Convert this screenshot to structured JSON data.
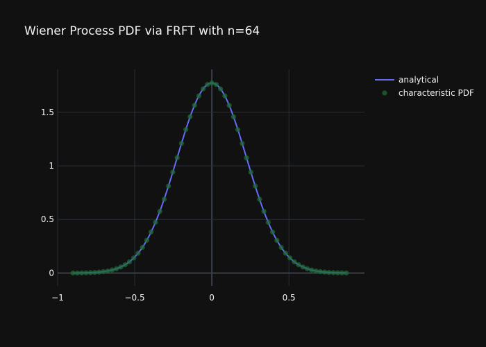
{
  "chart_data": {
    "type": "line",
    "title": "Wiener Process PDF via FRFT with n=64",
    "xlabel": "",
    "ylabel": "",
    "xlim": [
      -1.0,
      0.99
    ],
    "ylim": [
      -0.12,
      1.9
    ],
    "x_ticks": [
      -1,
      -0.5,
      0,
      0.5
    ],
    "x_tick_labels": [
      "−1",
      "−0.5",
      "0",
      "0.5"
    ],
    "y_ticks": [
      0,
      0.5,
      1,
      1.5
    ],
    "y_tick_labels": [
      "0",
      "0.5",
      "1",
      "1.5"
    ],
    "grid": true,
    "legend_position": "top-right",
    "distribution": {
      "mean": 0,
      "sigma": 0.225,
      "x_min": -0.9,
      "x_max": 0.872,
      "n_points": 64
    },
    "series": [
      {
        "name": "analytical",
        "kind": "line",
        "color": "#636efa"
      },
      {
        "name": "characteristic PDF",
        "kind": "markers",
        "color": "#1f6b35",
        "marker_opacity": 0.75
      }
    ]
  }
}
